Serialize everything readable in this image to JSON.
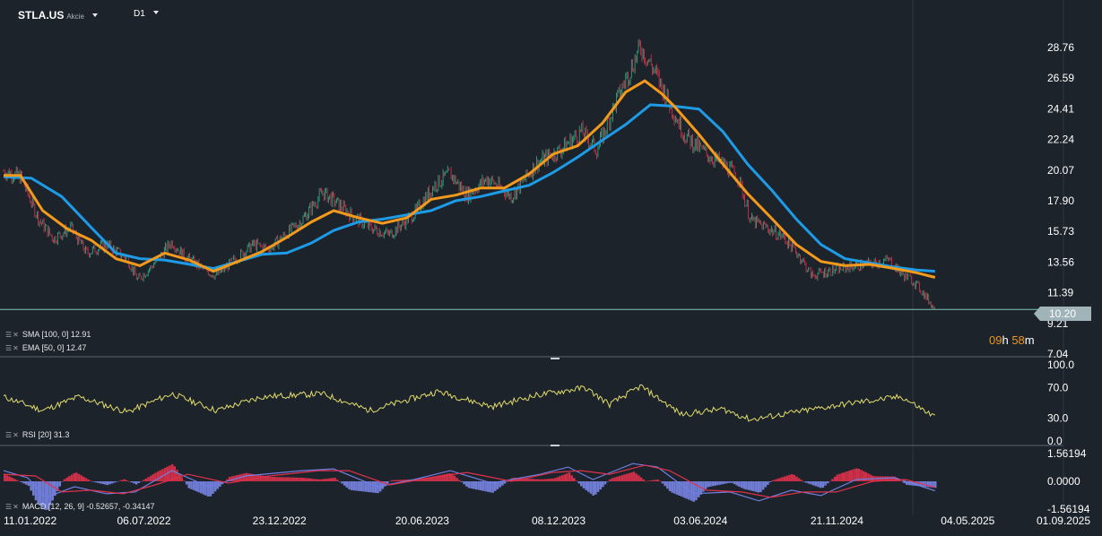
{
  "header": {
    "symbol": "STLA.US",
    "instrument_type": "Akcie",
    "timeframe": "D1"
  },
  "indicators": {
    "sma_label": "SMA [100, 0] 12.91",
    "ema_label": "EMA [50, 0] 12.47",
    "rsi_label": "RSI [20] 31.3",
    "macd_label": "MACD [12, 26, 9] -0.52657, -0.34147"
  },
  "current_price": "10.20",
  "countdown": {
    "hours": "09",
    "h_unit": "h",
    "minutes": "58",
    "m_unit": "m"
  },
  "colors": {
    "background": "#1c232b",
    "sma": "#1e9be6",
    "ema": "#f39a1c",
    "up_candle": "#2fb38a",
    "down_candle": "#e0314b",
    "rsi_line": "#e3dc6a",
    "macd_line": "#6f7fe0",
    "signal_line": "#e0314b",
    "price_line": "#7fc4bb"
  },
  "chart_data": [
    {
      "type": "candlestick",
      "name": "price",
      "x_ticks": [
        "11.01.2022",
        "06.07.2022",
        "23.12.2022",
        "20.06.2023",
        "08.12.2023",
        "03.06.2024",
        "21.11.2024",
        "04.05.2025",
        "01.09.2025"
      ],
      "y_ticks": [
        "28.76",
        "26.59",
        "24.41",
        "22.24",
        "20.07",
        "17.90",
        "15.73",
        "13.56",
        "11.39",
        "9.21",
        "7.04"
      ],
      "ylim": [
        7.04,
        30.6
      ],
      "close_path": [
        [
          "2022-01-11",
          20.0
        ],
        [
          "2022-02-01",
          19.6
        ],
        [
          "2022-02-25",
          16.5
        ],
        [
          "2022-03-15",
          15.2
        ],
        [
          "2022-04-05",
          16.0
        ],
        [
          "2022-04-25",
          14.2
        ],
        [
          "2022-05-20",
          14.8
        ],
        [
          "2022-06-15",
          13.8
        ],
        [
          "2022-06-28",
          12.3
        ],
        [
          "2022-07-15",
          13.2
        ],
        [
          "2022-08-10",
          15.0
        ],
        [
          "2022-08-25",
          14.0
        ],
        [
          "2022-09-20",
          13.0
        ],
        [
          "2022-10-05",
          12.6
        ],
        [
          "2022-10-25",
          13.6
        ],
        [
          "2022-11-20",
          14.8
        ],
        [
          "2022-12-10",
          14.5
        ],
        [
          "2023-01-20",
          16.5
        ],
        [
          "2023-02-15",
          18.5
        ],
        [
          "2023-03-10",
          17.5
        ],
        [
          "2023-03-25",
          16.8
        ],
        [
          "2023-04-15",
          16.0
        ],
        [
          "2023-05-10",
          15.5
        ],
        [
          "2023-06-10",
          17.0
        ],
        [
          "2023-07-05",
          19.0
        ],
        [
          "2023-07-25",
          19.8
        ],
        [
          "2023-08-15",
          18.3
        ],
        [
          "2023-09-10",
          19.5
        ],
        [
          "2023-10-10",
          18.2
        ],
        [
          "2023-11-10",
          20.5
        ],
        [
          "2023-12-10",
          21.5
        ],
        [
          "2024-01-05",
          22.8
        ],
        [
          "2024-01-25",
          21.5
        ],
        [
          "2024-02-15",
          24.5
        ],
        [
          "2024-03-01",
          26.5
        ],
        [
          "2024-03-20",
          28.8
        ],
        [
          "2024-04-05",
          27.2
        ],
        [
          "2024-04-25",
          24.8
        ],
        [
          "2024-05-15",
          22.5
        ],
        [
          "2024-06-10",
          21.2
        ],
        [
          "2024-07-01",
          20.5
        ],
        [
          "2024-07-20",
          19.6
        ],
        [
          "2024-08-05",
          16.5
        ],
        [
          "2024-08-25",
          16.0
        ],
        [
          "2024-09-15",
          15.3
        ],
        [
          "2024-10-05",
          14.0
        ],
        [
          "2024-10-20",
          12.6
        ],
        [
          "2024-11-10",
          12.9
        ],
        [
          "2024-12-05",
          13.2
        ],
        [
          "2025-01-10",
          13.5
        ],
        [
          "2025-01-25",
          13.7
        ],
        [
          "2025-02-10",
          12.7
        ],
        [
          "2025-02-25",
          12.2
        ],
        [
          "2025-03-10",
          11.3
        ],
        [
          "2025-03-24",
          10.2
        ]
      ]
    },
    {
      "type": "line",
      "name": "SMA [100, 0]",
      "last_value": 12.91,
      "points": [
        [
          "2022-01-11",
          19.6
        ],
        [
          "2022-02-15",
          19.5
        ],
        [
          "2022-03-25",
          18.2
        ],
        [
          "2022-05-01",
          16.0
        ],
        [
          "2022-06-01",
          14.2
        ],
        [
          "2022-07-01",
          13.8
        ],
        [
          "2022-08-01",
          13.7
        ],
        [
          "2022-09-01",
          13.4
        ],
        [
          "2022-10-01",
          13.1
        ],
        [
          "2022-11-01",
          13.6
        ],
        [
          "2022-12-01",
          14.1
        ],
        [
          "2023-01-01",
          14.2
        ],
        [
          "2023-02-01",
          14.9
        ],
        [
          "2023-03-01",
          15.8
        ],
        [
          "2023-04-01",
          16.4
        ],
        [
          "2023-05-01",
          16.6
        ],
        [
          "2023-06-01",
          16.9
        ],
        [
          "2023-07-01",
          17.2
        ],
        [
          "2023-08-01",
          17.9
        ],
        [
          "2023-09-01",
          18.2
        ],
        [
          "2023-10-01",
          18.6
        ],
        [
          "2023-11-01",
          19.0
        ],
        [
          "2023-12-01",
          19.9
        ],
        [
          "2024-01-01",
          21.0
        ],
        [
          "2024-02-01",
          22.2
        ],
        [
          "2024-03-01",
          23.3
        ],
        [
          "2024-04-01",
          24.7
        ],
        [
          "2024-05-01",
          24.6
        ],
        [
          "2024-06-01",
          24.4
        ],
        [
          "2024-07-01",
          22.8
        ],
        [
          "2024-08-01",
          20.5
        ],
        [
          "2024-09-01",
          18.6
        ],
        [
          "2024-10-01",
          16.6
        ],
        [
          "2024-11-01",
          14.8
        ],
        [
          "2024-12-01",
          13.8
        ],
        [
          "2025-01-01",
          13.5
        ],
        [
          "2025-02-01",
          13.2
        ],
        [
          "2025-03-01",
          13.0
        ],
        [
          "2025-03-24",
          12.91
        ]
      ]
    },
    {
      "type": "line",
      "name": "EMA [50, 0]",
      "last_value": 12.47,
      "points": [
        [
          "2022-01-11",
          19.7
        ],
        [
          "2022-02-01",
          19.7
        ],
        [
          "2022-03-01",
          17.2
        ],
        [
          "2022-04-01",
          15.9
        ],
        [
          "2022-05-01",
          15.1
        ],
        [
          "2022-06-01",
          13.8
        ],
        [
          "2022-07-01",
          13.3
        ],
        [
          "2022-08-01",
          14.2
        ],
        [
          "2022-09-01",
          13.7
        ],
        [
          "2022-10-01",
          12.9
        ],
        [
          "2022-11-01",
          13.6
        ],
        [
          "2022-12-01",
          14.3
        ],
        [
          "2023-01-01",
          15.3
        ],
        [
          "2023-02-01",
          16.4
        ],
        [
          "2023-03-01",
          17.2
        ],
        [
          "2023-04-01",
          16.7
        ],
        [
          "2023-05-01",
          16.3
        ],
        [
          "2023-06-01",
          16.7
        ],
        [
          "2023-07-01",
          18.0
        ],
        [
          "2023-08-01",
          18.3
        ],
        [
          "2023-09-01",
          18.8
        ],
        [
          "2023-10-01",
          18.8
        ],
        [
          "2023-11-01",
          19.8
        ],
        [
          "2023-12-01",
          21.2
        ],
        [
          "2024-01-01",
          21.8
        ],
        [
          "2024-02-01",
          23.4
        ],
        [
          "2024-03-01",
          25.6
        ],
        [
          "2024-03-25",
          26.4
        ],
        [
          "2024-04-15",
          25.5
        ],
        [
          "2024-05-01",
          24.6
        ],
        [
          "2024-06-01",
          22.6
        ],
        [
          "2024-07-01",
          20.5
        ],
        [
          "2024-08-01",
          18.4
        ],
        [
          "2024-09-01",
          16.6
        ],
        [
          "2024-10-01",
          14.8
        ],
        [
          "2024-11-01",
          13.6
        ],
        [
          "2024-12-01",
          13.3
        ],
        [
          "2025-01-01",
          13.4
        ],
        [
          "2025-02-01",
          13.1
        ],
        [
          "2025-03-01",
          12.8
        ],
        [
          "2025-03-24",
          12.47
        ]
      ]
    },
    {
      "type": "line",
      "name": "RSI [20]",
      "last_value": 31.3,
      "y_ticks": [
        "100.0",
        "70.0",
        "30.0",
        "0.0"
      ],
      "ylim": [
        0,
        100
      ],
      "points": [
        [
          "2022-01-11",
          58
        ],
        [
          "2022-03-01",
          40
        ],
        [
          "2022-04-15",
          58
        ],
        [
          "2022-06-15",
          38
        ],
        [
          "2022-08-10",
          62
        ],
        [
          "2022-10-05",
          40
        ],
        [
          "2022-12-01",
          58
        ],
        [
          "2023-02-15",
          62
        ],
        [
          "2023-04-15",
          40
        ],
        [
          "2023-07-10",
          65
        ],
        [
          "2023-09-15",
          45
        ],
        [
          "2023-11-10",
          60
        ],
        [
          "2024-01-10",
          70
        ],
        [
          "2024-02-10",
          48
        ],
        [
          "2024-03-20",
          72
        ],
        [
          "2024-05-10",
          35
        ],
        [
          "2024-07-01",
          42
        ],
        [
          "2024-08-05",
          28
        ],
        [
          "2024-10-01",
          38
        ],
        [
          "2024-12-10",
          50
        ],
        [
          "2025-02-10",
          58
        ],
        [
          "2025-03-24",
          31.3
        ]
      ]
    },
    {
      "type": "macd",
      "name": "MACD [12, 26, 9]",
      "values": [
        -0.52657,
        -0.34147
      ],
      "y_ticks": [
        "1.56194",
        "0.0000",
        "-1.56194"
      ],
      "ylim": [
        -1.56194,
        1.56194
      ],
      "macd": [
        [
          "2022-01-11",
          0.6
        ],
        [
          "2022-02-10",
          0.2
        ],
        [
          "2022-03-05",
          -0.9
        ],
        [
          "2022-04-10",
          -0.3
        ],
        [
          "2022-05-20",
          -0.7
        ],
        [
          "2022-06-25",
          -0.6
        ],
        [
          "2022-08-10",
          0.6
        ],
        [
          "2022-09-25",
          -0.3
        ],
        [
          "2022-11-10",
          0.3
        ],
        [
          "2023-01-20",
          0.6
        ],
        [
          "2023-03-01",
          0.7
        ],
        [
          "2023-04-25",
          -0.3
        ],
        [
          "2023-06-10",
          0.1
        ],
        [
          "2023-07-25",
          0.6
        ],
        [
          "2023-09-15",
          -0.1
        ],
        [
          "2023-11-15",
          0.4
        ],
        [
          "2023-12-20",
          0.8
        ],
        [
          "2024-01-20",
          0.1
        ],
        [
          "2024-03-10",
          1.0
        ],
        [
          "2024-04-10",
          0.8
        ],
        [
          "2024-05-25",
          -0.7
        ],
        [
          "2024-07-10",
          -0.6
        ],
        [
          "2024-08-15",
          -1.1
        ],
        [
          "2024-09-25",
          -0.5
        ],
        [
          "2024-11-01",
          -0.8
        ],
        [
          "2024-12-15",
          0.1
        ],
        [
          "2025-02-01",
          0.2
        ],
        [
          "2025-03-24",
          -0.52657
        ]
      ],
      "signal": [
        [
          "2022-01-11",
          0.4
        ],
        [
          "2022-02-20",
          0.3
        ],
        [
          "2022-03-25",
          -0.6
        ],
        [
          "2022-05-01",
          -0.5
        ],
        [
          "2022-06-10",
          -0.7
        ],
        [
          "2022-07-20",
          -0.2
        ],
        [
          "2022-08-30",
          0.4
        ],
        [
          "2022-10-20",
          -0.1
        ],
        [
          "2022-12-10",
          0.3
        ],
        [
          "2023-02-10",
          0.6
        ],
        [
          "2023-03-20",
          0.6
        ],
        [
          "2023-05-10",
          -0.2
        ],
        [
          "2023-06-30",
          0.2
        ],
        [
          "2023-08-15",
          0.5
        ],
        [
          "2023-10-10",
          0.0
        ],
        [
          "2023-12-01",
          0.5
        ],
        [
          "2024-01-05",
          0.6
        ],
        [
          "2024-02-10",
          0.4
        ],
        [
          "2024-03-25",
          0.9
        ],
        [
          "2024-04-25",
          0.6
        ],
        [
          "2024-06-10",
          -0.5
        ],
        [
          "2024-07-25",
          -0.6
        ],
        [
          "2024-08-30",
          -0.9
        ],
        [
          "2024-10-10",
          -0.6
        ],
        [
          "2024-11-20",
          -0.6
        ],
        [
          "2025-01-05",
          0.0
        ],
        [
          "2025-02-15",
          0.1
        ],
        [
          "2025-03-24",
          -0.34147
        ]
      ]
    }
  ]
}
